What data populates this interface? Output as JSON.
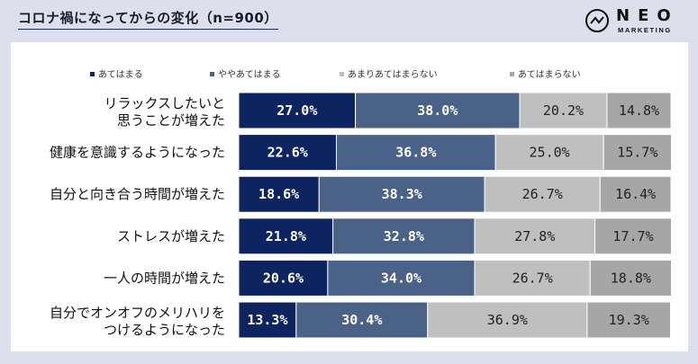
{
  "page": {
    "title": "コロナ禍になってからの変化（n=900）"
  },
  "logo": {
    "word": "NEO",
    "sub": "MARKETING"
  },
  "colors": {
    "background": "#dde0ec",
    "series": [
      "#0d2461",
      "#4a6287",
      "#bfbfbf",
      "#a6a6a6"
    ],
    "label_text": [
      "#ffffff",
      "#ffffff",
      "#222222",
      "#222222"
    ]
  },
  "chart_data": {
    "type": "bar",
    "orientation": "horizontal-stacked-100",
    "title": "コロナ禍になってからの変化（n=900）",
    "xlim": [
      0,
      100
    ],
    "legend_position": "top",
    "categories": [
      [
        "リラックスしたいと",
        "思うことが増えた"
      ],
      [
        "健康を意識するようになった"
      ],
      [
        "自分と向き合う時間が増えた"
      ],
      [
        "ストレスが増えた"
      ],
      [
        "一人の時間が増えた"
      ],
      [
        "自分でオンオフのメリハリを",
        "つけるようになった"
      ]
    ],
    "series": [
      {
        "name": "あてはまる",
        "values": [
          27.0,
          22.6,
          18.6,
          21.8,
          20.6,
          13.3
        ],
        "labels": [
          "27.0%",
          "22.6%",
          "18.6%",
          "21.8%",
          "20.6%",
          "13.3%"
        ]
      },
      {
        "name": "ややあてはまる",
        "values": [
          38.0,
          36.8,
          38.3,
          32.8,
          34.0,
          30.4
        ],
        "labels": [
          "38.0%",
          "36.8%",
          "38.3%",
          "32.8%",
          "34.0%",
          "30.4%"
        ]
      },
      {
        "name": "あまりあてはまらない",
        "values": [
          20.2,
          25.0,
          26.7,
          27.8,
          26.7,
          36.9
        ],
        "labels": [
          "20.2%",
          "25.0%",
          "26.7%",
          "27.8%",
          "26.7%",
          "36.9%"
        ]
      },
      {
        "name": "あてはまらない",
        "values": [
          14.8,
          15.7,
          16.4,
          17.7,
          18.8,
          19.3
        ],
        "labels": [
          "14.8%",
          "15.7%",
          "16.4%",
          "17.7%",
          "18.8%",
          "19.3%"
        ]
      }
    ]
  }
}
